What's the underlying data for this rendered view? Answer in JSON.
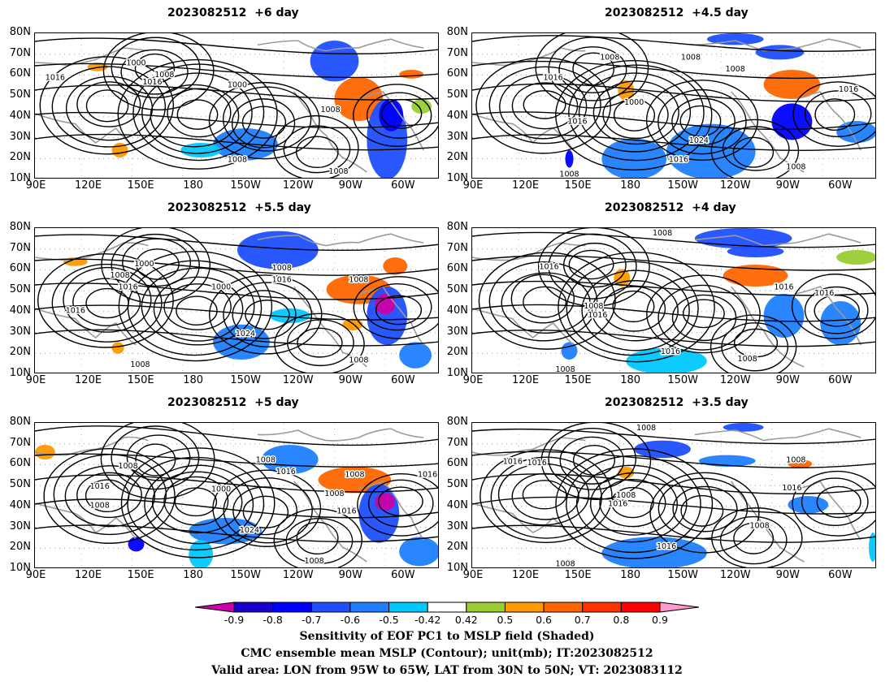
{
  "panels": [
    {
      "title": "2023082512  +6 day",
      "labels": [
        "1000",
        "1008",
        "1016",
        "1000",
        "1008",
        "1016",
        "1008",
        "1008"
      ]
    },
    {
      "title": "2023082512  +4.5 day",
      "labels": [
        "1008",
        "1008",
        "1008",
        "1016",
        "1000",
        "1016",
        "1024",
        "1016",
        "1016",
        "1008",
        "1008"
      ]
    },
    {
      "title": "2023082512  +5.5 day",
      "labels": [
        "1000",
        "1008",
        "1016",
        "1000",
        "1008",
        "1016",
        "1016",
        "1024",
        "1008",
        "1008",
        "1008"
      ]
    },
    {
      "title": "2023082512  +4 day",
      "labels": [
        "1008",
        "1016",
        "1008",
        "1016",
        "1016",
        "1016",
        "1016",
        "1008",
        "1008"
      ]
    },
    {
      "title": "2023082512  +5 day",
      "labels": [
        "1008",
        "1008",
        "1016",
        "1016",
        "1000",
        "1008",
        "1008",
        "1008",
        "1016",
        "1024",
        "1008",
        "1016"
      ]
    },
    {
      "title": "2023082512  +3.5 day",
      "labels": [
        "1008",
        "1016",
        "1008",
        "1016",
        "1016",
        "1008",
        "1008",
        "1016",
        "1016",
        "1008"
      ]
    }
  ],
  "axes": {
    "lat_ticks": [
      "80N",
      "70N",
      "60N",
      "50N",
      "40N",
      "30N",
      "20N",
      "10N"
    ],
    "lon_ticks": [
      "90E",
      "120E",
      "150E",
      "180",
      "150W",
      "120W",
      "90W",
      "60W"
    ]
  },
  "colorbar": {
    "labels": [
      "-0.9",
      "-0.8",
      "-0.7",
      "-0.6",
      "-0.5",
      "-0.42",
      "0.42",
      "0.5",
      "0.6",
      "0.7",
      "0.8",
      "0.9"
    ],
    "colors": [
      "#cc00aa",
      "#1a00cc",
      "#0000ff",
      "#1f4fff",
      "#1f7fff",
      "#00c8ff",
      "#ffffff",
      "#99cc33",
      "#ff9900",
      "#ff6600",
      "#ff3300",
      "#ff0000",
      "#ff99cc"
    ]
  },
  "caption": {
    "line1": "Sensitivity of EOF PC1 to MSLP field (Shaded)",
    "line2": "CMC ensemble mean MSLP (Contour); unit(mb); IT:2023082512",
    "line3": "Valid area: LON from 95W to 65W, LAT from 30N to 50N; VT: 2023083112"
  }
}
